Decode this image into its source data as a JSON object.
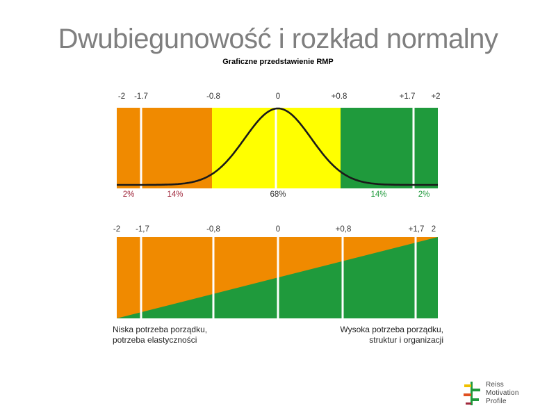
{
  "title": "Dwubiegunowość i rozkład normalny",
  "subtitle": "Graficzne przedstawienie RMP",
  "top_chart": {
    "ticks": [
      "-2",
      "-1.7",
      "-0.8",
      "0",
      "+0.8",
      "+1.7",
      "+2"
    ],
    "percentages": [
      "2%",
      "14%",
      "68%",
      "14%",
      "2%"
    ],
    "colors": {
      "orange": "#f08a00",
      "yellow": "#ffff00",
      "green": "#1f9a3c",
      "pct_red": "#a0283c",
      "pct_green": "#1f9a3c",
      "pct_center": "#333333"
    }
  },
  "bottom_chart": {
    "ticks": [
      "-2",
      "-1,7",
      "-0,8",
      "0",
      "+0,8",
      "+1,7",
      "2"
    ],
    "caption_left": [
      "Niska potrzeba porządku,",
      "potrzeba elastyczności"
    ],
    "caption_right": [
      "Wysoka potrzeba porządku,",
      "struktur i organizacji"
    ]
  },
  "logo": {
    "lines": [
      "Reiss",
      "Motivation",
      "Profile"
    ]
  }
}
